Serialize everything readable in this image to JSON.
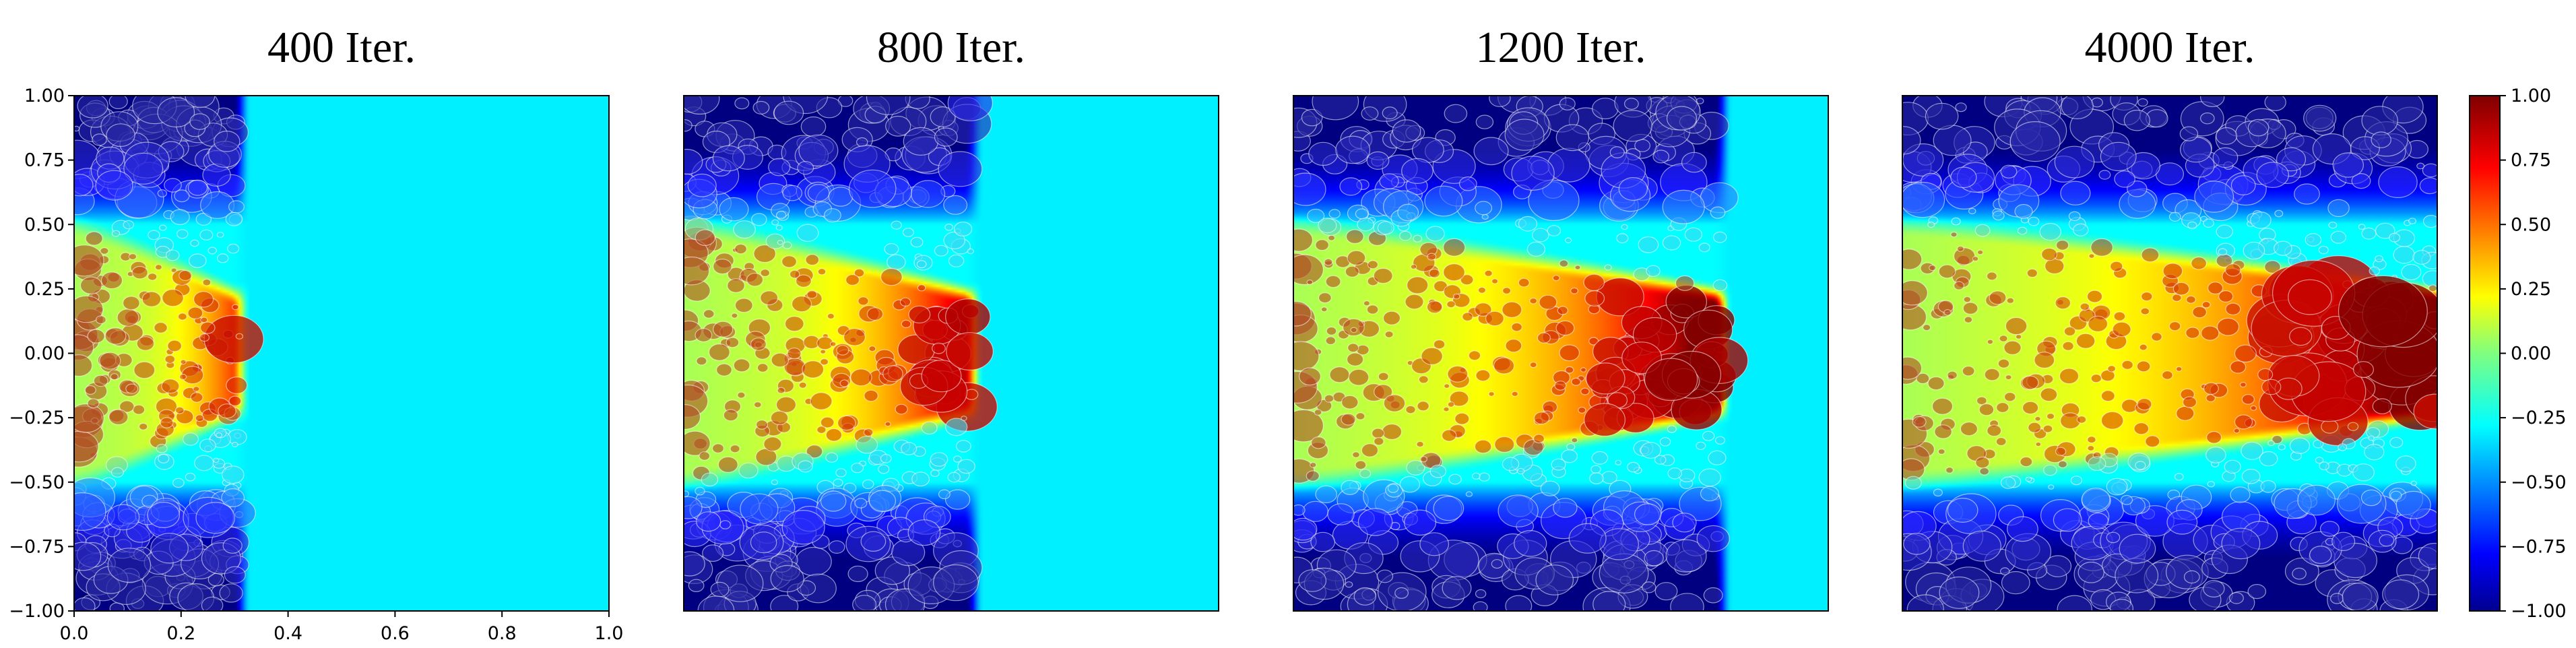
{
  "chart_data": {
    "type": "heatmap",
    "colormap": "jet",
    "panels": [
      {
        "title": "400 Iter.",
        "front_x": 0.3
      },
      {
        "title": "800 Iter.",
        "front_x": 0.53
      },
      {
        "title": "1200 Iter.",
        "front_x": 0.79
      },
      {
        "title": "4000 Iter.",
        "front_x": 1.0
      }
    ],
    "xlim": [
      0.0,
      1.0
    ],
    "ylim": [
      -1.0,
      1.0
    ],
    "x_ticks": [
      "0.0",
      "0.2",
      "0.4",
      "0.6",
      "0.8",
      "1.0"
    ],
    "y_ticks": [
      "1.00",
      "0.75",
      "0.50",
      "0.25",
      "0.00",
      "−0.25",
      "−0.50",
      "−0.75",
      "−1.00"
    ],
    "colorbar": {
      "range": [
        -1.0,
        1.0
      ],
      "ticks": [
        "1.00",
        "0.75",
        "0.50",
        "0.25",
        "0.00",
        "−0.25",
        "−0.50",
        "−0.75",
        "−1.00"
      ]
    }
  }
}
